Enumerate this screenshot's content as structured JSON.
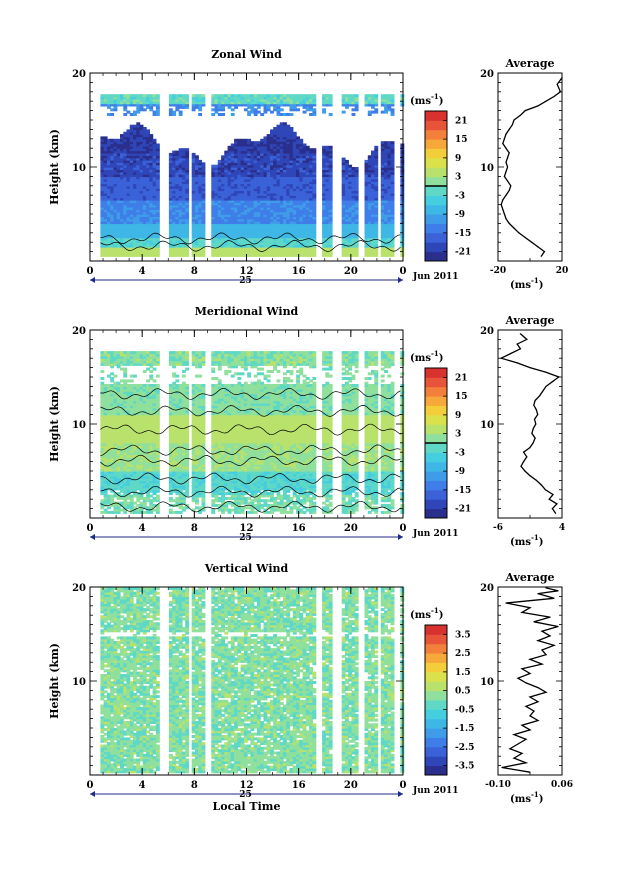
{
  "chart_data": [
    {
      "type": "heatmap",
      "title": "Zonal Wind",
      "ylabel": "Height (km)",
      "ylim": [
        0,
        20
      ],
      "yticks": [
        "10",
        "20"
      ],
      "xlim": [
        0,
        24
      ],
      "xticks": [
        "0",
        "4",
        "8",
        "12",
        "16",
        "20",
        "0"
      ],
      "date_day": "25",
      "date_month": "Jun 2011",
      "colorbar": {
        "unit_prefix": "(ms",
        "unit_exp": "-1",
        "unit_suffix": ")",
        "ticks": [
          "21",
          "15",
          "9",
          "3",
          "-3",
          "-9",
          "-15",
          "-21"
        ],
        "range": [
          -24,
          24
        ],
        "zero_line": true
      },
      "profile": {
        "title": "Average",
        "xlim": [
          -20,
          20
        ],
        "xticks": [
          "-20",
          "20"
        ],
        "yticks": [
          "10",
          "20"
        ],
        "unit_prefix": "(ms",
        "unit_exp": "-1",
        "unit_suffix": ")",
        "x": [
          7,
          9,
          5,
          1,
          -3,
          -7,
          -10,
          -13,
          -15,
          -16,
          -17,
          -18,
          -17,
          -15,
          -13,
          -12,
          -14,
          -16,
          -15,
          -14,
          -15,
          -14,
          -13,
          -15,
          -17,
          -16,
          -15,
          -13,
          -11,
          -10,
          -6,
          -3,
          5,
          10,
          15,
          19,
          17,
          20
        ],
        "y": [
          0.5,
          1.0,
          1.5,
          2.0,
          2.5,
          3.0,
          3.5,
          4.0,
          4.5,
          5.0,
          5.5,
          6.0,
          6.5,
          7.0,
          7.5,
          8.0,
          8.5,
          9.0,
          9.5,
          10.0,
          10.5,
          11.0,
          11.5,
          12.0,
          12.5,
          13.0,
          13.5,
          14.0,
          14.5,
          15.0,
          15.5,
          16.0,
          16.5,
          17.0,
          17.5,
          18.0,
          18.8,
          19.5
        ]
      }
    },
    {
      "type": "heatmap",
      "title": "Meridional Wind",
      "ylabel": "Height (km)",
      "ylim": [
        0,
        20
      ],
      "yticks": [
        "10",
        "20"
      ],
      "xlim": [
        0,
        24
      ],
      "xticks": [
        "0",
        "4",
        "8",
        "12",
        "16",
        "20",
        "0"
      ],
      "date_day": "25",
      "date_month": "Jun 2011",
      "colorbar": {
        "unit_prefix": "(ms",
        "unit_exp": "-1",
        "unit_suffix": ")",
        "ticks": [
          "21",
          "15",
          "9",
          "3",
          "-3",
          "-9",
          "-15",
          "-21"
        ],
        "range": [
          -24,
          24
        ],
        "zero_line": true
      },
      "profile": {
        "title": "Average",
        "xlim": [
          -6,
          4
        ],
        "xticks": [
          "-6",
          "4"
        ],
        "yticks": [
          "10",
          "20"
        ],
        "unit_prefix": "(ms",
        "unit_exp": "-1",
        "unit_suffix": ")",
        "x": [
          3.0,
          2.5,
          3.2,
          2.0,
          2.6,
          1.4,
          0.8,
          0.0,
          -1.0,
          -1.8,
          -2.4,
          -2.0,
          -1.5,
          -2.0,
          -1.0,
          -0.5,
          -0.2,
          -0.7,
          -0.5,
          -0.1,
          -0.3,
          0.2,
          0.0,
          -0.4,
          -0.2,
          0.5,
          1.0,
          1.5,
          2.5,
          3.5,
          1.5,
          -1.0,
          -3.0,
          -5.5,
          -4.0,
          -2.5,
          -3.0,
          -1.5,
          -2.5
        ],
        "y": [
          0.5,
          1.0,
          1.5,
          2.0,
          2.5,
          3.0,
          3.5,
          4.0,
          4.5,
          5.0,
          5.5,
          6.0,
          6.5,
          7.0,
          7.5,
          8.0,
          8.5,
          9.0,
          9.5,
          10.0,
          10.5,
          11.0,
          11.5,
          12.0,
          12.5,
          13.0,
          13.5,
          14.0,
          14.5,
          15.0,
          15.5,
          16.0,
          16.5,
          17.0,
          17.5,
          18.0,
          18.5,
          19.0,
          19.6
        ]
      }
    },
    {
      "type": "heatmap",
      "title": "Vertical Wind",
      "ylabel": "Height (km)",
      "ylim": [
        0,
        20
      ],
      "yticks": [
        "10",
        "20"
      ],
      "xlim": [
        0,
        24
      ],
      "xticks": [
        "0",
        "4",
        "8",
        "12",
        "16",
        "20",
        "0"
      ],
      "xlabel": "Local Time",
      "date_day": "25",
      "date_month": "Jun 2011",
      "colorbar": {
        "unit_prefix": "(ms",
        "unit_exp": "-1",
        "unit_suffix": ")",
        "ticks": [
          "3.5",
          "2.5",
          "1.5",
          "0.5",
          "-0.5",
          "-1.5",
          "-2.5",
          "-3.5"
        ],
        "range": [
          -4,
          4
        ],
        "zero_line": false
      },
      "profile": {
        "title": "Average",
        "xlim": [
          -0.1,
          0.06
        ],
        "xticks": [
          "-0.10",
          "0.06"
        ],
        "yticks": [
          "10",
          "20"
        ],
        "unit_prefix": "(ms",
        "unit_exp": "-1",
        "unit_suffix": ")",
        "x": [
          -0.02,
          -0.09,
          -0.03,
          -0.06,
          -0.04,
          -0.07,
          -0.05,
          -0.03,
          -0.06,
          -0.02,
          -0.04,
          0.0,
          -0.02,
          -0.01,
          -0.03,
          0.0,
          -0.02,
          0.02,
          0.0,
          -0.03,
          -0.05,
          -0.02,
          -0.04,
          0.01,
          -0.02,
          0.02,
          0.01,
          0.04,
          0.0,
          0.03,
          0.01,
          0.05,
          -0.01,
          0.03,
          -0.04,
          -0.02,
          -0.08,
          0.04,
          0.0,
          0.05,
          0.02
        ],
        "y": [
          0.3,
          0.8,
          1.3,
          1.8,
          2.3,
          2.8,
          3.3,
          3.8,
          4.3,
          4.8,
          5.3,
          5.8,
          6.3,
          6.8,
          7.3,
          7.8,
          8.3,
          8.8,
          9.3,
          9.8,
          10.3,
          10.8,
          11.3,
          11.8,
          12.3,
          12.8,
          13.3,
          13.8,
          14.3,
          14.8,
          15.3,
          15.8,
          16.3,
          16.8,
          17.3,
          17.8,
          18.3,
          18.8,
          19.3,
          19.6,
          19.9
        ]
      }
    }
  ]
}
